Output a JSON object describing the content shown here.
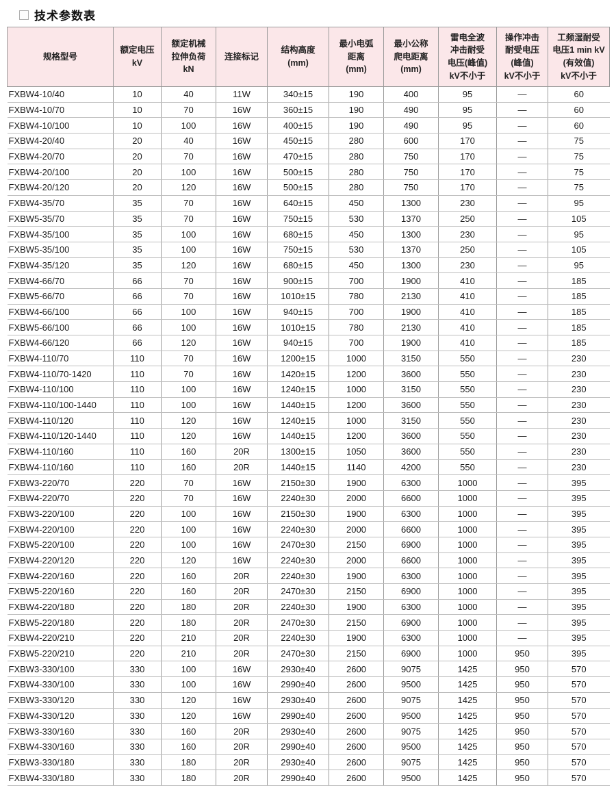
{
  "page": {
    "title": "技术参数表"
  },
  "colors": {
    "header_bg": "#fbe7e9",
    "header_border": "#9a9a9a",
    "row_border": "#bdbdbd",
    "text": "#1a1a1a"
  },
  "table": {
    "headers": [
      "规格型号",
      "额定电压\nkV",
      "额定机械\n拉伸负荷\nkN",
      "连接标记",
      "结构高度\n(mm)",
      "最小电弧\n距离\n(mm)",
      "最小公称\n爬电距离\n(mm)",
      "雷电全波\n冲击耐受\n电压(峰值)\nkV不小于",
      "操作冲击\n耐受电压\n(峰值)\nkV不小于",
      "工频湿耐受\n电压1 min kV\n(有效值)\nkV不小于"
    ],
    "rows": [
      [
        "FXBW4-10/40",
        "10",
        "40",
        "11W",
        "340±15",
        "190",
        "400",
        "95",
        "—",
        "60"
      ],
      [
        "FXBW4-10/70",
        "10",
        "70",
        "16W",
        "360±15",
        "190",
        "490",
        "95",
        "—",
        "60"
      ],
      [
        "FXBW4-10/100",
        "10",
        "100",
        "16W",
        "400±15",
        "190",
        "490",
        "95",
        "—",
        "60"
      ],
      [
        "FXBW4-20/40",
        "20",
        "40",
        "16W",
        "450±15",
        "280",
        "600",
        "170",
        "—",
        "75"
      ],
      [
        "FXBW4-20/70",
        "20",
        "70",
        "16W",
        "470±15",
        "280",
        "750",
        "170",
        "—",
        "75"
      ],
      [
        "FXBW4-20/100",
        "20",
        "100",
        "16W",
        "500±15",
        "280",
        "750",
        "170",
        "—",
        "75"
      ],
      [
        "FXBW4-20/120",
        "20",
        "120",
        "16W",
        "500±15",
        "280",
        "750",
        "170",
        "—",
        "75"
      ],
      [
        "FXBW4-35/70",
        "35",
        "70",
        "16W",
        "640±15",
        "450",
        "1300",
        "230",
        "—",
        "95"
      ],
      [
        "FXBW5-35/70",
        "35",
        "70",
        "16W",
        "750±15",
        "530",
        "1370",
        "250",
        "—",
        "105"
      ],
      [
        "FXBW4-35/100",
        "35",
        "100",
        "16W",
        "680±15",
        "450",
        "1300",
        "230",
        "—",
        "95"
      ],
      [
        "FXBW5-35/100",
        "35",
        "100",
        "16W",
        "750±15",
        "530",
        "1370",
        "250",
        "—",
        "105"
      ],
      [
        "FXBW4-35/120",
        "35",
        "120",
        "16W",
        "680±15",
        "450",
        "1300",
        "230",
        "—",
        "95"
      ],
      [
        "FXBW4-66/70",
        "66",
        "70",
        "16W",
        "900±15",
        "700",
        "1900",
        "410",
        "—",
        "185"
      ],
      [
        "FXBW5-66/70",
        "66",
        "70",
        "16W",
        "1010±15",
        "780",
        "2130",
        "410",
        "—",
        "185"
      ],
      [
        "FXBW4-66/100",
        "66",
        "100",
        "16W",
        "940±15",
        "700",
        "1900",
        "410",
        "—",
        "185"
      ],
      [
        "FXBW5-66/100",
        "66",
        "100",
        "16W",
        "1010±15",
        "780",
        "2130",
        "410",
        "—",
        "185"
      ],
      [
        "FXBW4-66/120",
        "66",
        "120",
        "16W",
        "940±15",
        "700",
        "1900",
        "410",
        "—",
        "185"
      ],
      [
        "FXBW4-110/70",
        "110",
        "70",
        "16W",
        "1200±15",
        "1000",
        "3150",
        "550",
        "—",
        "230"
      ],
      [
        "FXBW4-110/70-1420",
        "110",
        "70",
        "16W",
        "1420±15",
        "1200",
        "3600",
        "550",
        "—",
        "230"
      ],
      [
        "FXBW4-110/100",
        "110",
        "100",
        "16W",
        "1240±15",
        "1000",
        "3150",
        "550",
        "—",
        "230"
      ],
      [
        "FXBW4-110/100-1440",
        "110",
        "100",
        "16W",
        "1440±15",
        "1200",
        "3600",
        "550",
        "—",
        "230"
      ],
      [
        "FXBW4-110/120",
        "110",
        "120",
        "16W",
        "1240±15",
        "1000",
        "3150",
        "550",
        "—",
        "230"
      ],
      [
        "FXBW4-110/120-1440",
        "110",
        "120",
        "16W",
        "1440±15",
        "1200",
        "3600",
        "550",
        "—",
        "230"
      ],
      [
        "FXBW4-110/160",
        "110",
        "160",
        "20R",
        "1300±15",
        "1050",
        "3600",
        "550",
        "—",
        "230"
      ],
      [
        "FXBW4-110/160",
        "110",
        "160",
        "20R",
        "1440±15",
        "1140",
        "4200",
        "550",
        "—",
        "230"
      ],
      [
        "FXBW3-220/70",
        "220",
        "70",
        "16W",
        "2150±30",
        "1900",
        "6300",
        "1000",
        "—",
        "395"
      ],
      [
        "FXBW4-220/70",
        "220",
        "70",
        "16W",
        "2240±30",
        "2000",
        "6600",
        "1000",
        "—",
        "395"
      ],
      [
        "FXBW3-220/100",
        "220",
        "100",
        "16W",
        "2150±30",
        "1900",
        "6300",
        "1000",
        "—",
        "395"
      ],
      [
        "FXBW4-220/100",
        "220",
        "100",
        "16W",
        "2240±30",
        "2000",
        "6600",
        "1000",
        "—",
        "395"
      ],
      [
        "FXBW5-220/100",
        "220",
        "100",
        "16W",
        "2470±30",
        "2150",
        "6900",
        "1000",
        "—",
        "395"
      ],
      [
        "FXBW4-220/120",
        "220",
        "120",
        "16W",
        "2240±30",
        "2000",
        "6600",
        "1000",
        "—",
        "395"
      ],
      [
        "FXBW4-220/160",
        "220",
        "160",
        "20R",
        "2240±30",
        "1900",
        "6300",
        "1000",
        "—",
        "395"
      ],
      [
        "FXBW5-220/160",
        "220",
        "160",
        "20R",
        "2470±30",
        "2150",
        "6900",
        "1000",
        "—",
        "395"
      ],
      [
        "FXBW4-220/180",
        "220",
        "180",
        "20R",
        "2240±30",
        "1900",
        "6300",
        "1000",
        "—",
        "395"
      ],
      [
        "FXBW5-220/180",
        "220",
        "180",
        "20R",
        "2470±30",
        "2150",
        "6900",
        "1000",
        "—",
        "395"
      ],
      [
        "FXBW4-220/210",
        "220",
        "210",
        "20R",
        "2240±30",
        "1900",
        "6300",
        "1000",
        "—",
        "395"
      ],
      [
        "FXBW5-220/210",
        "220",
        "210",
        "20R",
        "2470±30",
        "2150",
        "6900",
        "1000",
        "950",
        "395"
      ],
      [
        "FXBW3-330/100",
        "330",
        "100",
        "16W",
        "2930±40",
        "2600",
        "9075",
        "1425",
        "950",
        "570"
      ],
      [
        "FXBW4-330/100",
        "330",
        "100",
        "16W",
        "2990±40",
        "2600",
        "9500",
        "1425",
        "950",
        "570"
      ],
      [
        "FXBW3-330/120",
        "330",
        "120",
        "16W",
        "2930±40",
        "2600",
        "9075",
        "1425",
        "950",
        "570"
      ],
      [
        "FXBW4-330/120",
        "330",
        "120",
        "16W",
        "2990±40",
        "2600",
        "9500",
        "1425",
        "950",
        "570"
      ],
      [
        "FXBW3-330/160",
        "330",
        "160",
        "20R",
        "2930±40",
        "2600",
        "9075",
        "1425",
        "950",
        "570"
      ],
      [
        "FXBW4-330/160",
        "330",
        "160",
        "20R",
        "2990±40",
        "2600",
        "9500",
        "1425",
        "950",
        "570"
      ],
      [
        "FXBW3-330/180",
        "330",
        "180",
        "20R",
        "2930±40",
        "2600",
        "9075",
        "1425",
        "950",
        "570"
      ],
      [
        "FXBW4-330/180",
        "330",
        "180",
        "20R",
        "2990±40",
        "2600",
        "9500",
        "1425",
        "950",
        "570"
      ]
    ]
  }
}
